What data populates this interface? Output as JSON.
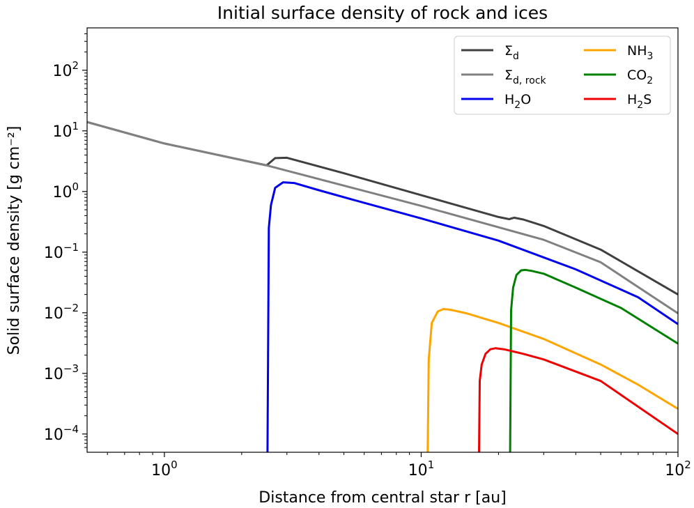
{
  "chart_data": {
    "type": "line",
    "title": "Initial surface density of rock and ices",
    "xlabel": "Distance from central star r [au]",
    "ylabel": "Solid surface density [g cm⁻²]",
    "xscale": "log",
    "yscale": "log",
    "xlim": [
      0.5,
      100
    ],
    "ylim": [
      5e-05,
      500
    ],
    "x_ticks": [
      {
        "value": 1,
        "base": "10",
        "exp": "0"
      },
      {
        "value": 10,
        "base": "10",
        "exp": "1"
      },
      {
        "value": 100,
        "base": "10",
        "exp": "2"
      }
    ],
    "y_ticks": [
      {
        "value": 0.0001,
        "base": "10",
        "exp": "−4"
      },
      {
        "value": 0.001,
        "base": "10",
        "exp": "−3"
      },
      {
        "value": 0.01,
        "base": "10",
        "exp": "−2"
      },
      {
        "value": 0.1,
        "base": "10",
        "exp": "−1"
      },
      {
        "value": 1,
        "base": "10",
        "exp": "0"
      },
      {
        "value": 10,
        "base": "10",
        "exp": "1"
      },
      {
        "value": 100,
        "base": "10",
        "exp": "2"
      }
    ],
    "legend_position": "top-right",
    "series": [
      {
        "id": "sigma_d",
        "legend_base": "Σ",
        "legend_sub": "d",
        "legend_sub2": "",
        "legend_tail": "",
        "color": "#404040",
        "x": [
          0.5,
          1,
          2.5,
          2.7,
          3,
          5,
          10,
          20,
          22,
          23,
          25,
          30,
          50,
          100
        ],
        "y": [
          14,
          6.2,
          2.7,
          3.55,
          3.6,
          2.0,
          0.87,
          0.38,
          0.35,
          0.37,
          0.345,
          0.27,
          0.11,
          0.02
        ]
      },
      {
        "id": "sigma_d_rock",
        "legend_base": "Σ",
        "legend_sub": "d, rock",
        "legend_sub2": "",
        "legend_tail": "",
        "color": "#808080",
        "x": [
          0.5,
          1,
          2.5,
          10,
          30,
          50,
          100
        ],
        "y": [
          14,
          6.2,
          2.7,
          0.58,
          0.16,
          0.068,
          0.0098
        ]
      },
      {
        "id": "h2o",
        "legend_base": "H",
        "legend_sub": "2",
        "legend_sub2": "",
        "legend_tail": "O",
        "color": "#0000ee",
        "x": [
          2.52,
          2.55,
          2.6,
          2.7,
          2.9,
          3.2,
          4,
          6,
          10,
          20,
          40,
          70,
          100
        ],
        "y": [
          5e-05,
          0.25,
          0.6,
          1.15,
          1.42,
          1.38,
          1.05,
          0.65,
          0.36,
          0.155,
          0.052,
          0.018,
          0.0065
        ]
      },
      {
        "id": "nh3",
        "legend_base": "NH",
        "legend_sub": "3",
        "legend_sub2": "",
        "legend_tail": "",
        "color": "#ffa500",
        "x": [
          10.6,
          10.7,
          11,
          11.6,
          12.2,
          13,
          15,
          20,
          30,
          50,
          70,
          100
        ],
        "y": [
          5e-05,
          0.0017,
          0.0068,
          0.0105,
          0.0115,
          0.0112,
          0.0098,
          0.0068,
          0.0037,
          0.0014,
          0.00065,
          0.00026
        ]
      },
      {
        "id": "co2",
        "legend_base": "CO",
        "legend_sub": "2",
        "legend_sub2": "",
        "legend_tail": "",
        "color": "#008000",
        "x": [
          22.2,
          22.4,
          22.8,
          23.5,
          24.5,
          25.5,
          27,
          30,
          40,
          60,
          100
        ],
        "y": [
          5e-05,
          0.011,
          0.026,
          0.042,
          0.05,
          0.051,
          0.049,
          0.044,
          0.026,
          0.012,
          0.0031
        ]
      },
      {
        "id": "h2s",
        "legend_base": "H",
        "legend_sub": "2",
        "legend_sub2": "",
        "legend_tail": "S",
        "color": "#ee0000",
        "x": [
          16.8,
          16.9,
          17.2,
          17.8,
          18.6,
          19.5,
          21,
          25,
          30,
          50,
          100
        ],
        "y": [
          5e-05,
          0.00075,
          0.0014,
          0.0021,
          0.0025,
          0.0026,
          0.0025,
          0.0021,
          0.0017,
          0.00075,
          0.0001
        ]
      }
    ]
  }
}
